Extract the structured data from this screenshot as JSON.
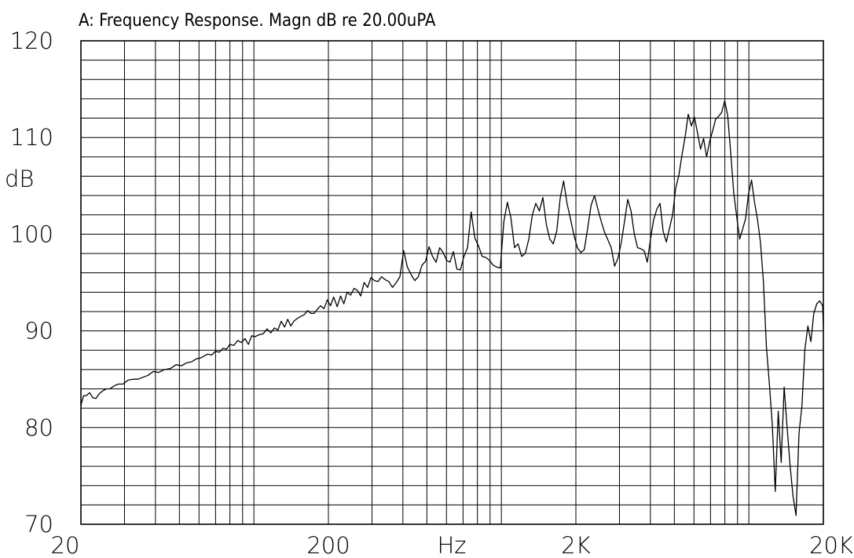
{
  "chart_data": {
    "type": "line",
    "title": "A: Frequency Response. Magn dB re 20.00uPA",
    "ylabel": "dB",
    "xlabel": "Hz",
    "x_scale": "log",
    "xlim": [
      20,
      20000
    ],
    "ylim": [
      70,
      120
    ],
    "y_ticks": [
      {
        "value": 70,
        "label": "70"
      },
      {
        "value": 80,
        "label": "80"
      },
      {
        "value": 90,
        "label": "90"
      },
      {
        "value": 100,
        "label": "100"
      },
      {
        "value": 110,
        "label": "110"
      },
      {
        "value": 120,
        "label": "120"
      }
    ],
    "x_ticks": [
      {
        "value": 20,
        "label": "20"
      },
      {
        "value": 200,
        "label": "200"
      },
      {
        "value": 2000,
        "label": "2K"
      },
      {
        "value": 20000,
        "label": "20K"
      }
    ],
    "grid": true,
    "series": [
      {
        "x": [
          20,
          20.5,
          21,
          21.7,
          22.3,
          23,
          23.7,
          24.5,
          25.3,
          26.2,
          27.2,
          28.3,
          29.6,
          31,
          32.4,
          34,
          35.6,
          37.3,
          39.2,
          41.2,
          43.5,
          46,
          48.5,
          51,
          53.5,
          56,
          58.5,
          61,
          63,
          65,
          67.5,
          70,
          72.5,
          75,
          77.5,
          80,
          83,
          86,
          89,
          92,
          95,
          98,
          101,
          105,
          109,
          113,
          117,
          121,
          125,
          129,
          133,
          137,
          141,
          145,
          150,
          155,
          160,
          165,
          170,
          175,
          180,
          186,
          192,
          198,
          204,
          210,
          217,
          224,
          231,
          238,
          246,
          254,
          262,
          270,
          279,
          288,
          297,
          307,
          317,
          328,
          339,
          351,
          363,
          376,
          389,
          403,
          417,
          432,
          447,
          462,
          478,
          494,
          510,
          527,
          545,
          563,
          582,
          601,
          620,
          640,
          661,
          683,
          706,
          730,
          755,
          781,
          808,
          836,
          865,
          895,
          926,
          958,
          990,
          1023,
          1057,
          1093,
          1130,
          1168,
          1208,
          1249,
          1291,
          1334,
          1378,
          1424,
          1471,
          1519,
          1569,
          1620,
          1673,
          1728,
          1784,
          1842,
          1902,
          1964,
          2028,
          2094,
          2162,
          2232,
          2304,
          2378,
          2454,
          2532,
          2612,
          2695,
          2780,
          2867,
          2957,
          3049,
          3144,
          3241,
          3341,
          3444,
          3550,
          3659,
          3771,
          3886,
          4004,
          4125,
          4249,
          4376,
          4506,
          4640,
          4778,
          4920,
          5066,
          5216,
          5370,
          5528,
          5690,
          5856,
          6026,
          6200,
          6379,
          6562,
          6750,
          6943,
          7141,
          7344,
          7553,
          7767,
          7987,
          8213,
          8445,
          8683,
          8928,
          9179,
          9437,
          9702,
          9974,
          10254,
          10541,
          10836,
          11139,
          11451,
          11771,
          12100,
          12438,
          12786,
          13143,
          13510,
          13888,
          14276,
          14675,
          15085,
          15507,
          15940,
          16386,
          16844,
          17315,
          17799,
          18296,
          18808,
          19334,
          19874,
          20000
        ],
        "y": [
          82.3,
          83.3,
          83.3,
          83.6,
          83.1,
          83,
          83.5,
          83.8,
          84,
          84,
          84.3,
          84.5,
          84.5,
          84.9,
          85,
          85,
          85.2,
          85.4,
          85.8,
          85.7,
          86,
          86.1,
          86.5,
          86.4,
          86.7,
          86.8,
          87.1,
          87.2,
          87.4,
          87.6,
          87.5,
          87.9,
          87.8,
          88.2,
          88.1,
          88.6,
          88.5,
          89,
          88.8,
          89.2,
          88.6,
          89.5,
          89.4,
          89.6,
          89.7,
          90.2,
          89.8,
          90.3,
          90.1,
          91,
          90.4,
          91.2,
          90.5,
          91,
          91.3,
          91.5,
          91.7,
          92.1,
          91.8,
          91.8,
          92.2,
          92.6,
          92.3,
          93.2,
          92.6,
          93.5,
          92.5,
          93.6,
          92.8,
          94,
          93.7,
          94.4,
          94.2,
          93.6,
          95,
          94.5,
          95.5,
          95.2,
          95.1,
          95.6,
          95.3,
          95.1,
          94.5,
          95,
          95.6,
          98.3,
          96.6,
          95.8,
          95.2,
          95.6,
          96.8,
          97.2,
          98.7,
          97.7,
          97.1,
          98.6,
          98.1,
          97.3,
          97.1,
          98.2,
          96.4,
          96.3,
          97.7,
          98.6,
          102.3,
          99.6,
          98.8,
          97.7,
          97.6,
          97.3,
          96.8,
          96.6,
          96.5,
          101.3,
          103.3,
          101.7,
          98.6,
          99,
          97.7,
          98,
          99.5,
          102,
          103.2,
          102.4,
          103.8,
          101,
          99.5,
          99,
          100.3,
          103.7,
          105.5,
          103.2,
          101.6,
          99.9,
          98.6,
          98.1,
          98.4,
          100.6,
          103,
          104,
          102.6,
          101.3,
          100.2,
          99.4,
          98.6,
          96.7,
          97.5,
          99.1,
          101.3,
          103.6,
          102.4,
          100,
          98.6,
          98.5,
          98.3,
          97.1,
          99.5,
          101.5,
          102.6,
          103.2,
          100.3,
          99.2,
          100.6,
          102,
          104.8,
          106.1,
          108.2,
          110.1,
          112.4,
          111.2,
          112.1,
          110.5,
          108.8,
          109.9,
          108,
          109.6,
          110.7,
          111.9,
          112.2,
          112.6,
          113.8,
          112.3,
          108.4,
          104.3,
          101.8,
          99.5,
          100.5,
          101.6,
          104.2,
          105.6,
          103.3,
          101.5,
          99.2,
          95.1,
          88.4,
          84.5,
          80.3,
          73.4,
          81.7,
          76.4,
          84.2,
          80,
          76.1,
          72.9,
          70.9,
          79.4,
          82.2,
          88.1,
          90.5,
          88.9,
          91.8,
          92.8,
          93.1,
          92.6,
          90.5
        ]
      }
    ]
  }
}
